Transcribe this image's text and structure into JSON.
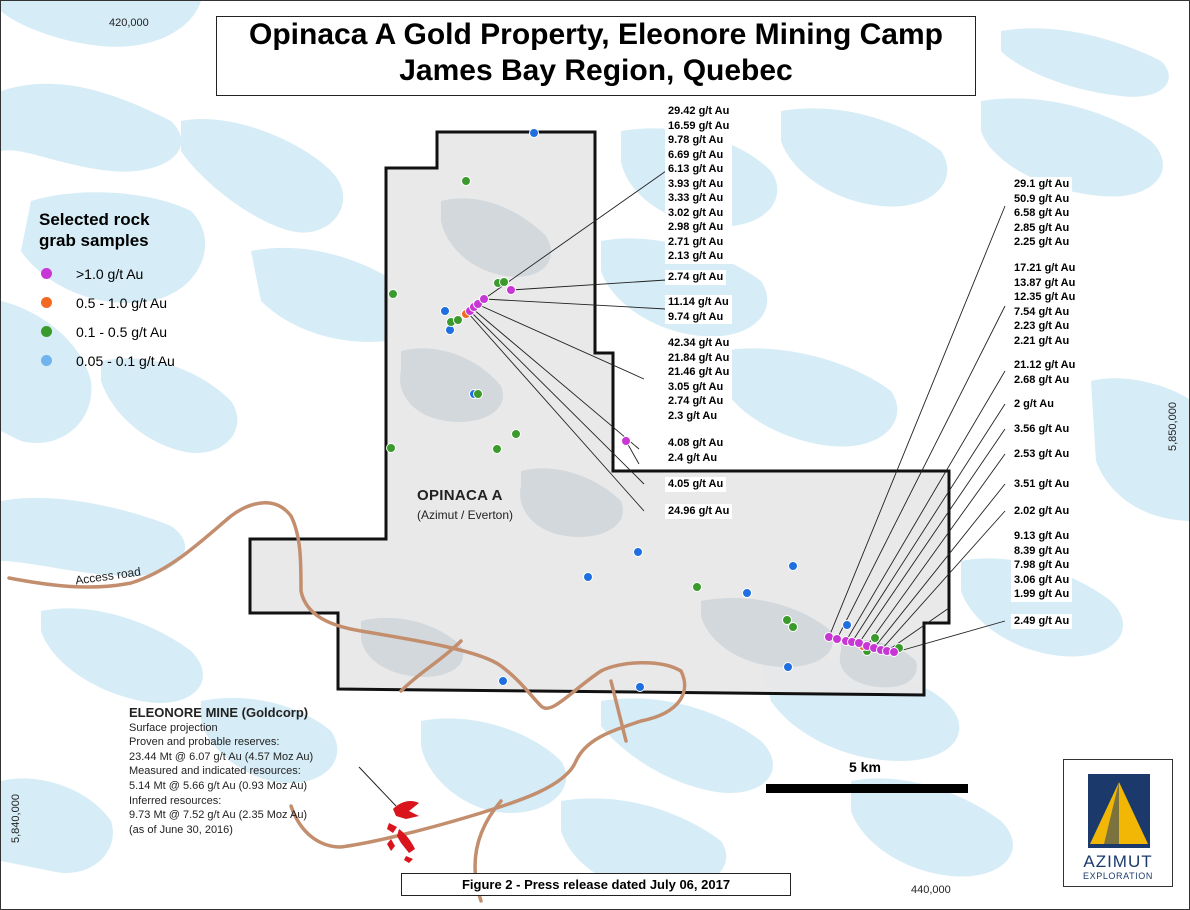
{
  "title": {
    "line1": "Opinaca A Gold Property, Eleonore Mining Camp",
    "line2": "James Bay Region, Quebec"
  },
  "grid_coords": {
    "top_easting": "420,000",
    "bottom_easting": "440,000",
    "left_northing": "5,840,000",
    "right_northing": "5,850,000"
  },
  "legend": {
    "title_line1": "Selected rock",
    "title_line2": "grab samples",
    "items": [
      {
        "label": ">1.0 g/t Au",
        "color": "#c837d6"
      },
      {
        "label": "0.5 - 1.0 g/t Au",
        "color": "#f26a21"
      },
      {
        "label": "0.1 - 0.5 g/t Au",
        "color": "#3a9a2b"
      },
      {
        "label": "0.05 - 0.1 g/t Au",
        "color": "#6fb4ee"
      }
    ]
  },
  "property": {
    "name": "OPINACA A",
    "owners": "(Azimut / Everton)"
  },
  "road_label": "Access road",
  "mine": {
    "title": "ELEONORE MINE (Goldcorp)",
    "lines": [
      "Surface projection",
      "Proven and probable reserves:",
      "23.44 Mt @ 6.07 g/t Au (4.57 Moz Au)",
      "Measured and indicated resources:",
      "5.14 Mt @ 5.66 g/t Au (0.93 Moz Au)",
      "Inferred resources:",
      "9.73 Mt @ 7.52 g/t Au (2.35 Moz Au)",
      "(as of June 30, 2016)"
    ]
  },
  "assay_labels_west": [
    [
      "29.42 g/t Au",
      "16.59 g/t Au",
      "9.78 g/t Au",
      "6.69 g/t Au",
      "6.13 g/t Au",
      "3.93 g/t Au",
      "3.33 g/t Au",
      "3.02 g/t Au",
      "2.98 g/t Au",
      "2.71 g/t Au",
      "2.13 g/t Au"
    ],
    [
      "2.74 g/t Au"
    ],
    [
      "11.14 g/t Au",
      "9.74 g/t Au"
    ],
    [
      "42.34 g/t Au",
      "21.84 g/t Au",
      "21.46 g/t Au",
      "3.05 g/t Au",
      "2.74 g/t Au",
      "2.3 g/t Au"
    ],
    [
      "4.08 g/t Au",
      "2.4 g/t Au"
    ],
    [
      "4.05 g/t Au"
    ],
    [
      "24.96 g/t Au"
    ]
  ],
  "assay_labels_east": [
    [
      "29.1 g/t Au",
      "50.9 g/t Au",
      "6.58 g/t Au",
      "2.85 g/t Au",
      "2.25 g/t Au"
    ],
    [
      "17.21 g/t Au",
      "13.87 g/t Au",
      "12.35 g/t Au",
      "7.54 g/t Au",
      "2.23 g/t Au",
      "2.21 g/t Au"
    ],
    [
      "21.12 g/t Au",
      "2.68 g/t Au"
    ],
    [
      "2 g/t Au"
    ],
    [
      "3.56 g/t Au"
    ],
    [
      "2.53 g/t Au"
    ],
    [
      "3.51 g/t Au"
    ],
    [
      "2.02 g/t Au"
    ],
    [
      "9.13 g/t Au",
      "8.39 g/t Au",
      "7.98 g/t Au",
      "3.06 g/t Au",
      "1.99 g/t Au"
    ],
    [
      "2.49 g/t Au"
    ]
  ],
  "scale": {
    "label": "5 km"
  },
  "caption": "Figure 2 - Press release dated July 06, 2017",
  "logo": {
    "line1": "AZIMUT",
    "line2": "EXPLORATION"
  },
  "colors": {
    "water": "#d6ecf6",
    "property_fill": "#e7e7e7",
    "road": "#c38e6e",
    "mine": "#d9141c",
    "logo_blue": "#1b3a6b",
    "logo_gold": "#f2b705"
  }
}
